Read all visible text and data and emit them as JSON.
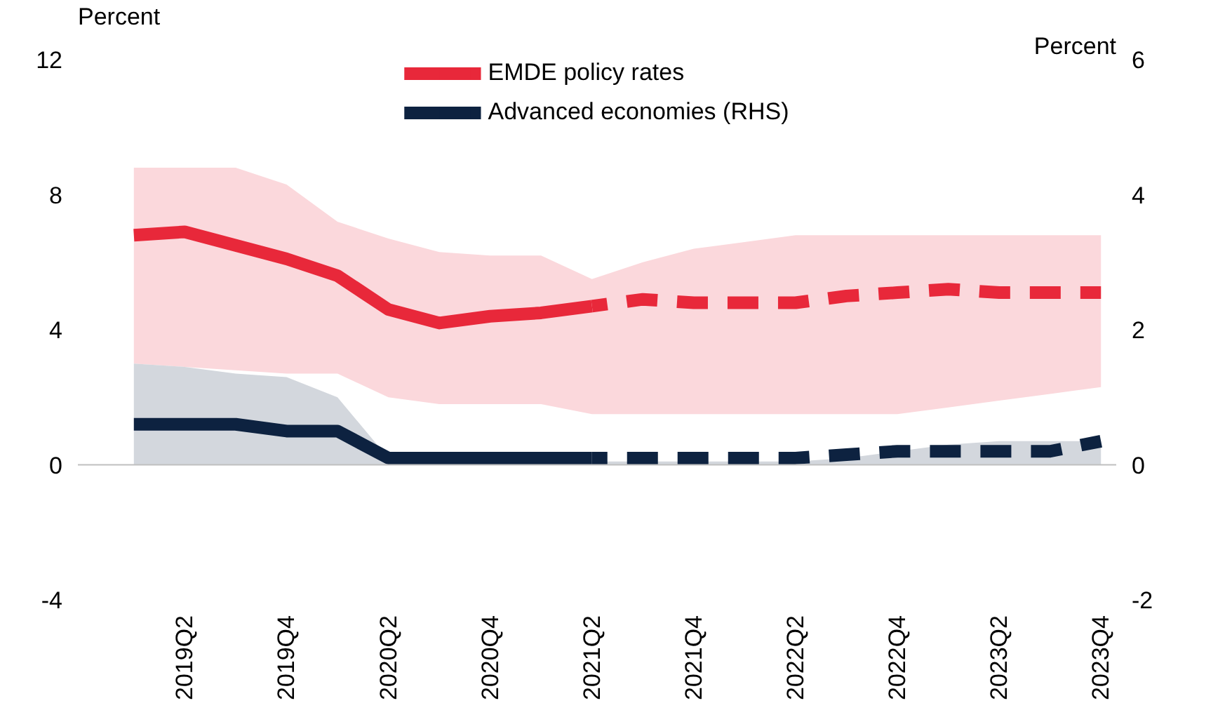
{
  "chart_data": {
    "type": "line",
    "ylabel": "Percent",
    "y2label": "Percent",
    "categories": [
      null,
      "2019Q2",
      null,
      "2019Q4",
      null,
      "2020Q2",
      null,
      "2020Q4",
      null,
      "2021Q2",
      null,
      "2021Q4",
      null,
      "2022Q2",
      null,
      "2022Q4",
      null,
      "2023Q2",
      null,
      "2023Q4"
    ],
    "ylim": [
      -4,
      12
    ],
    "yticks": [
      -4,
      0,
      4,
      8,
      12
    ],
    "y2lim": [
      -2,
      6
    ],
    "y2ticks": [
      -2,
      0,
      2,
      4,
      6
    ],
    "grid": false,
    "legend": "top",
    "marker": "none",
    "ref_lines": [
      {
        "axis": "y",
        "value": 0,
        "color": "#bfbfbf"
      }
    ],
    "series": [
      {
        "name": "EMDE policy rates",
        "color": "#e8283a",
        "line_style": "solid",
        "values": [
          6.8,
          6.9,
          6.5,
          6.1,
          5.6,
          4.6,
          4.2,
          4.4,
          4.5,
          4.7,
          null,
          null,
          null,
          null,
          null,
          null,
          null,
          null,
          null,
          null
        ],
        "lower": [
          3.0,
          2.9,
          2.8,
          2.7,
          2.7,
          2.0,
          1.8,
          1.8,
          1.8,
          1.5,
          1.5,
          1.5,
          1.5,
          1.5,
          1.5,
          1.5,
          1.7,
          1.9,
          2.1,
          2.3
        ],
        "upper": [
          8.8,
          8.8,
          8.8,
          8.3,
          7.2,
          6.7,
          6.3,
          6.2,
          6.2,
          5.5,
          6.0,
          6.4,
          6.6,
          6.8,
          6.8,
          6.8,
          6.8,
          6.8,
          6.8,
          6.8
        ]
      },
      {
        "name": "Advanced economies (RHS)",
        "axis": "y2",
        "color": "#0d2240",
        "line_style": "solid",
        "values": [
          0.6,
          0.6,
          0.6,
          0.5,
          0.5,
          0.1,
          0.1,
          0.1,
          0.1,
          0.1,
          null,
          null,
          null,
          null,
          null,
          null,
          null,
          null,
          null,
          null
        ],
        "lower": [
          0,
          0,
          0,
          0,
          0,
          0,
          0,
          0,
          0,
          0,
          0,
          0,
          0,
          0,
          0,
          0,
          0,
          0,
          0,
          0
        ],
        "upper": [
          1.5,
          1.45,
          1.35,
          1.3,
          1.0,
          0.1,
          0.05,
          0.05,
          0.05,
          0.05,
          0.05,
          0.05,
          0.05,
          0.05,
          0.1,
          0.2,
          0.3,
          0.35,
          0.35,
          0.35
        ]
      },
      {
        "color": "#e8283a",
        "line_style": "dashed",
        "values": [
          null,
          null,
          null,
          null,
          null,
          null,
          null,
          null,
          null,
          4.7,
          4.9,
          4.8,
          4.8,
          4.8,
          5.0,
          5.1,
          5.2,
          5.1,
          5.1,
          5.1
        ]
      },
      {
        "axis": "y2",
        "color": "#0d2240",
        "line_style": "dashed",
        "values": [
          null,
          null,
          null,
          null,
          null,
          null,
          null,
          null,
          null,
          0.1,
          0.1,
          0.1,
          0.1,
          0.1,
          0.15,
          0.2,
          0.2,
          0.2,
          0.2,
          0.35
        ]
      }
    ]
  }
}
